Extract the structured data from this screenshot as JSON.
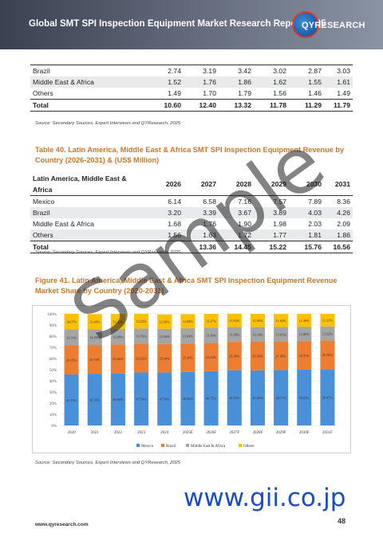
{
  "header": {
    "title": "Global SMT SPI Inspection Equipment Market Research Report 2025",
    "logo_text": "QYRESEARCH"
  },
  "table1": {
    "rows": [
      {
        "name": "Brazil",
        "values": [
          "2.74",
          "3.19",
          "3.42",
          "3.02",
          "2.87",
          "3.03"
        ]
      },
      {
        "name": "Middle East & Africa",
        "values": [
          "1.52",
          "1.76",
          "1.86",
          "1.62",
          "1.55",
          "1.61"
        ]
      },
      {
        "name": "Others",
        "values": [
          "1.49",
          "1.70",
          "1.79",
          "1.56",
          "1.46",
          "1.49"
        ]
      },
      {
        "name": "Total",
        "values": [
          "10.60",
          "12.40",
          "13.32",
          "11.78",
          "11.29",
          "11.79"
        ]
      }
    ],
    "source": "Source: Secondary Sources, Expert Interviews and QYResearch, 2025"
  },
  "table2": {
    "caption": "Table 40.   Latin America, Middle East & Africa SMT SPI Inspection Equipment Revenue by Country (2026-2031) & (US$ Million)",
    "header": [
      "Latin America, Middle East & Africa",
      "2026",
      "2027",
      "2028",
      "2029",
      "2030",
      "2031"
    ],
    "rows": [
      {
        "name": "Mexico",
        "values": [
          "6.14",
          "6.58",
          "7.16",
          "7.57",
          "7.89",
          "8.36"
        ]
      },
      {
        "name": "Brazil",
        "values": [
          "3.20",
          "3.39",
          "3.67",
          "3.89",
          "4.03",
          "4.26"
        ]
      },
      {
        "name": "Middle East & Africa",
        "values": [
          "1.68",
          "1.76",
          "1.90",
          "1.98",
          "2.03",
          "2.09"
        ]
      },
      {
        "name": "Others",
        "values": [
          "1.56",
          "1.63",
          "1.72",
          "1.77",
          "1.81",
          "1.86"
        ]
      },
      {
        "name": "Total",
        "values": [
          "",
          "13.36",
          "14.45",
          "15.22",
          "15.76",
          "16.56"
        ]
      }
    ],
    "source": "Source: Secondary Sources, Expert Interviews and QYResearch, 2025"
  },
  "figure": {
    "caption": "Figure 41.   Latin America, Middle East & Africa SMT SPI Inspection Equipment Revenue Market Share by Country (2020-2031)",
    "source": "Source: Secondary Sources, Expert Interviews and QYResearch, 2025"
  },
  "chart_data": {
    "type": "bar",
    "stacked": true,
    "categories": [
      "2020",
      "2021",
      "2022",
      "2023",
      "2024",
      "2025E",
      "2026F",
      "2027F",
      "2028F",
      "2029F",
      "2030F",
      "2031F"
    ],
    "ylim": [
      0,
      100
    ],
    "yticks": [
      "0%",
      "10%",
      "20%",
      "30%",
      "40%",
      "50%",
      "60%",
      "70%",
      "80%",
      "90%",
      "100%"
    ],
    "legend_position": "bottom",
    "series": [
      {
        "name": "Mexico",
        "color": "#4a90d9",
        "values": [
          45.75,
          46.36,
          46.9,
          47.54,
          47.56,
          48.06,
          48.75,
          49.52,
          49.46,
          49.77,
          50.07,
          50.47
        ],
        "labels": [
          "45.75%",
          "46.36%",
          "46.90%",
          "47.54%",
          "47.56%",
          "48.06%",
          "48.75%",
          "49.52%",
          "49.46%",
          "49.77%",
          "50.07%",
          "50.47%"
        ]
      },
      {
        "name": "Brazil",
        "color": "#ed7d31",
        "values": [
          26.05,
          25.74,
          25.66,
          25.62,
          25.44,
          25.4,
          25.42,
          25.38,
          25.56,
          25.49,
          25.57,
          25.7
        ],
        "labels": [
          "26.05%",
          "25.74%",
          "25.66%",
          "25.62%",
          "25.44%",
          "25.40%",
          "25.42%",
          "25.38%",
          "25.56%",
          "25.49%",
          "25.57%",
          "25.70%"
        ]
      },
      {
        "name": "Middle East & Africa",
        "color": "#a5a5a5",
        "values": [
          14.31,
          14.2,
          13.98,
          13.76,
          13.59,
          13.64,
          13.56,
          13.39,
          13.14,
          13.01,
          12.88,
          12.62
        ],
        "labels": [
          "14.31%",
          "14.20%",
          "13.98%",
          "13.76%",
          "13.59%",
          "13.64%",
          "13.56%",
          "13.39%",
          "13.14%",
          "13.01%",
          "12.88%",
          "12.62%"
        ]
      },
      {
        "name": "Others",
        "color": "#ffc000",
        "values": [
          14.07,
          13.48,
          13.42,
          13.22,
          12.96,
          12.68,
          12.27,
          11.92,
          11.85,
          11.64,
          11.49,
          11.21
        ],
        "labels": [
          "14.07%",
          "13.48%",
          "13.42%",
          "13.22%",
          "12.96%",
          "12.68%",
          "12.27%",
          "11.92%",
          "11.85%",
          "11.64%",
          "11.49%",
          "11.21%"
        ]
      }
    ]
  },
  "watermark": "Sample",
  "gii_url": "www.gii.co.jp",
  "footer": {
    "url": "www.qyresearch.com",
    "page": "48"
  }
}
